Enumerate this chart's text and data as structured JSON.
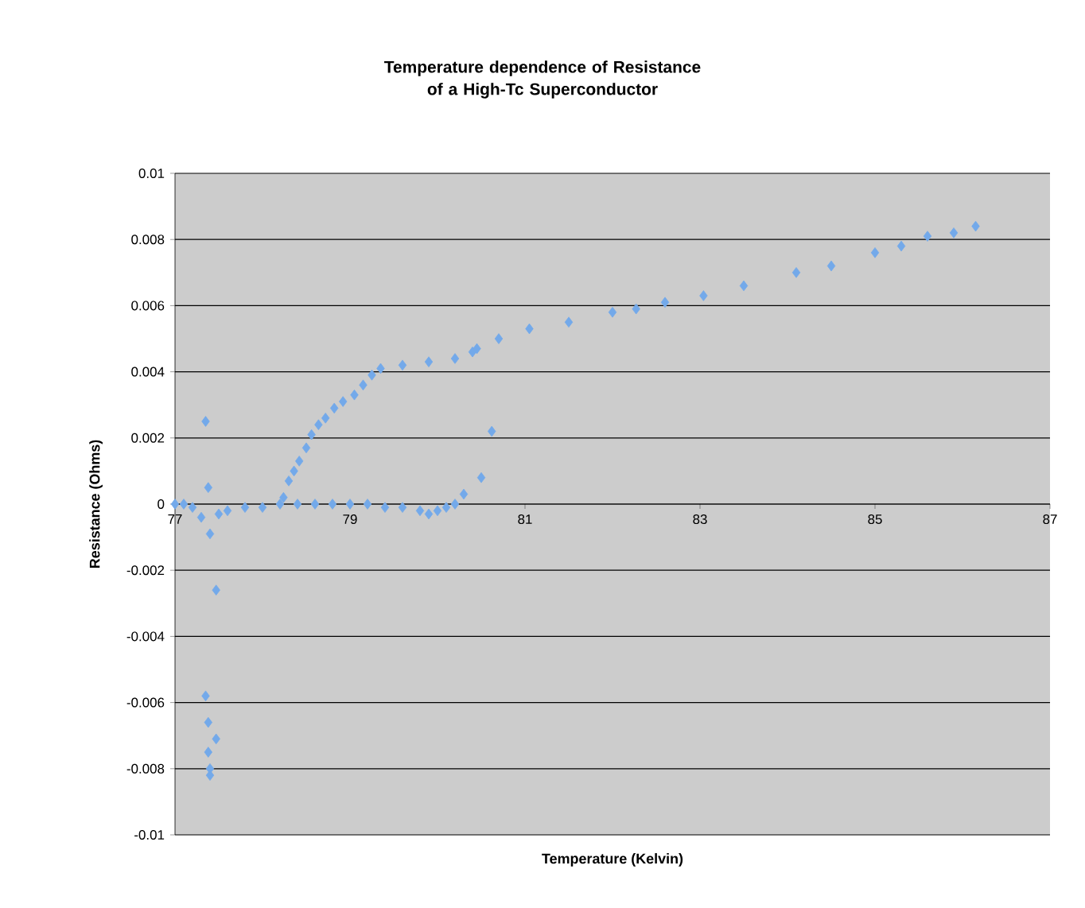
{
  "chart_data": {
    "type": "scatter",
    "title": "Temperature dependence of Resistance of a High-Tc Superconductor",
    "xlabel": "Temperature (Kelvin)",
    "ylabel": "Resistance (Ohms)",
    "x": [
      77.0,
      77.1,
      77.2,
      77.3,
      77.4,
      77.5,
      77.6,
      77.8,
      78.0,
      78.2,
      78.4,
      78.6,
      78.8,
      79.0,
      79.2,
      79.4,
      79.6,
      79.8,
      79.9,
      80.0,
      80.1,
      80.2,
      80.3,
      77.35,
      77.38,
      77.47,
      77.35,
      77.38,
      77.47,
      77.38,
      77.4,
      77.4,
      80.5,
      80.62,
      78.24,
      78.3,
      78.36,
      78.42,
      78.5,
      78.56,
      78.64,
      78.72,
      78.82,
      78.92,
      79.05,
      79.15,
      79.25,
      79.35,
      79.6,
      79.9,
      80.2,
      80.4,
      80.45,
      80.7,
      81.05,
      81.5,
      82.0,
      82.27,
      82.6,
      83.04,
      83.5,
      84.1,
      84.5,
      85.0,
      85.3,
      85.6,
      85.9,
      86.15
    ],
    "values": [
      0,
      0,
      -0.0001,
      -0.0004,
      -0.0009,
      -0.0003,
      -0.0002,
      -0.0001,
      -0.0001,
      0,
      0,
      0,
      0,
      0,
      0,
      -0.0001,
      -0.0001,
      -0.0002,
      -0.0003,
      -0.0002,
      -0.0001,
      0,
      0.0003,
      0.0025,
      0.0005,
      -0.0026,
      -0.0058,
      -0.0066,
      -0.0071,
      -0.0075,
      -0.008,
      -0.0082,
      0.0008,
      0.0022,
      0.0002,
      0.0007,
      0.001,
      0.0013,
      0.0017,
      0.0021,
      0.0024,
      0.0026,
      0.0029,
      0.0031,
      0.0033,
      0.0036,
      0.0039,
      0.0041,
      0.0042,
      0.0043,
      0.0044,
      0.0046,
      0.0047,
      0.005,
      0.0053,
      0.0055,
      0.0058,
      0.0059,
      0.0061,
      0.0063,
      0.0066,
      0.007,
      0.0072,
      0.0076,
      0.0078,
      0.0081,
      0.0082,
      0.0084
    ],
    "color": "#73a9ea",
    "marker": "diamond",
    "grid": "y",
    "xlim": [
      77,
      87
    ],
    "xticks": [
      77,
      79,
      81,
      83,
      85,
      87
    ],
    "ylim": [
      -0.01,
      0.01
    ],
    "yticks": [
      -0.01,
      -0.008,
      -0.006,
      -0.004,
      -0.002,
      0,
      0.002,
      0.004,
      0.006,
      0.008,
      0.01
    ]
  }
}
